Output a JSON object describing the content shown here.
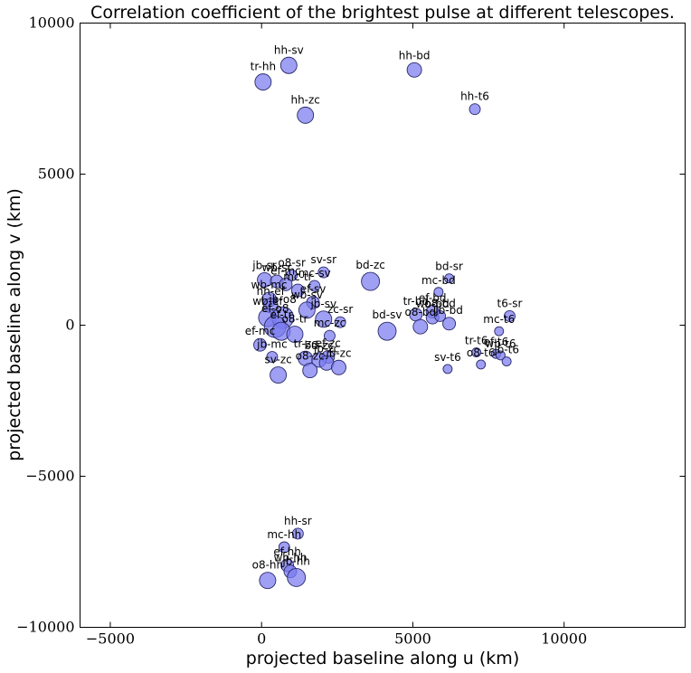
{
  "chart_data": {
    "type": "scatter",
    "title": "Correlation coefficient of the brightest pulse at different telescopes.",
    "xlabel": "projected baseline along u (km)",
    "ylabel": "projected baseline along v (km)",
    "xlim": [
      -6000,
      14000
    ],
    "ylim": [
      -10000,
      10000
    ],
    "xticks": [
      -5000,
      0,
      5000,
      10000
    ],
    "xtick_labels": [
      "−5000",
      "0",
      "5000",
      "10000"
    ],
    "yticks": [
      -10000,
      -5000,
      0,
      5000,
      10000
    ],
    "ytick_labels": [
      "−10000",
      "−5000",
      "0",
      "5000",
      "10000"
    ],
    "grid": false,
    "marker_color": "#7a7af0",
    "points": [
      {
        "label": "hh-sv",
        "u": 900,
        "v": 8600,
        "r": 9
      },
      {
        "label": "tr-hh",
        "u": 50,
        "v": 8050,
        "r": 9
      },
      {
        "label": "hh-bd",
        "u": 5050,
        "v": 8450,
        "r": 8
      },
      {
        "label": "hh-zc",
        "u": 1450,
        "v": 6950,
        "r": 9
      },
      {
        "label": "hh-t6",
        "u": 7050,
        "v": 7150,
        "r": 6
      },
      {
        "label": "jb-sr",
        "u": 100,
        "v": 1500,
        "r": 8
      },
      {
        "label": "o8-sr",
        "u": 1000,
        "v": 1650,
        "r": 6
      },
      {
        "label": "sv-sr",
        "u": 2050,
        "v": 1750,
        "r": 6
      },
      {
        "label": "wb-sr",
        "u": 500,
        "v": 1450,
        "r": 7
      },
      {
        "label": "ef-mc",
        "u": 800,
        "v": 1350,
        "r": 7
      },
      {
        "label": "mc-sv",
        "u": 1750,
        "v": 1300,
        "r": 6
      },
      {
        "label": "wb-mc",
        "u": 250,
        "v": 850,
        "r": 8
      },
      {
        "label": "mc-tr",
        "u": 1200,
        "v": 1150,
        "r": 7
      },
      {
        "label": "ef-sv",
        "u": 1700,
        "v": 750,
        "r": 7
      },
      {
        "label": "hh-ef",
        "u": 300,
        "v": 650,
        "r": 8
      },
      {
        "label": "wb-sv",
        "u": 1500,
        "v": 500,
        "r": 9
      },
      {
        "label": "jb-sv",
        "u": 2050,
        "v": 200,
        "r": 9
      },
      {
        "label": "wb-ef",
        "u": 200,
        "v": 250,
        "r": 10
      },
      {
        "label": "jb-o8",
        "u": 700,
        "v": 250,
        "r": 12
      },
      {
        "label": "ef-o8",
        "u": 450,
        "v": -50,
        "r": 12
      },
      {
        "label": "ef-tr",
        "u": 650,
        "v": -200,
        "r": 10
      },
      {
        "label": "o8-tr",
        "u": 1100,
        "v": -300,
        "r": 9
      },
      {
        "label": "ef-mc",
        "u": -50,
        "v": -650,
        "r": 7
      },
      {
        "label": "jb-mc",
        "u": 350,
        "v": -1050,
        "r": 6
      },
      {
        "label": "zc-sr",
        "u": 2600,
        "v": 100,
        "r": 6
      },
      {
        "label": "mc-zc",
        "u": 2250,
        "v": -350,
        "r": 6
      },
      {
        "label": "bd-zc",
        "u": 3600,
        "v": 1450,
        "r": 10
      },
      {
        "label": "bd-sv",
        "u": 4150,
        "v": -200,
        "r": 10
      },
      {
        "label": "tr-zc",
        "u": 1450,
        "v": -1100,
        "r": 8
      },
      {
        "label": "ef-zc",
        "u": 2200,
        "v": -1050,
        "r": 7
      },
      {
        "label": "bd-zc",
        "u": 1900,
        "v": -1150,
        "r": 8
      },
      {
        "label": "jb-zc",
        "u": 2150,
        "v": -1250,
        "r": 8
      },
      {
        "label": "o8-zc",
        "u": 1600,
        "v": -1500,
        "r": 8
      },
      {
        "label": "jb-zc",
        "u": 2550,
        "v": -1400,
        "r": 8
      },
      {
        "label": "sv-zc",
        "u": 550,
        "v": -1650,
        "r": 9
      },
      {
        "label": "bd-sr",
        "u": 6200,
        "v": 1550,
        "r": 5
      },
      {
        "label": "mc-bd",
        "u": 5850,
        "v": 1100,
        "r": 5
      },
      {
        "label": "tr-bd",
        "u": 5100,
        "v": 350,
        "r": 7
      },
      {
        "label": "ef-bd",
        "u": 5650,
        "v": 450,
        "r": 7
      },
      {
        "label": "wb-bd",
        "u": 5650,
        "v": 250,
        "r": 7
      },
      {
        "label": "o8-bd",
        "u": 5900,
        "v": 300,
        "r": 6
      },
      {
        "label": "jb-bd",
        "u": 6200,
        "v": 50,
        "r": 7
      },
      {
        "label": "o8-bd",
        "u": 5250,
        "v": -50,
        "r": 8
      },
      {
        "label": "sv-t6",
        "u": 6150,
        "v": -1450,
        "r": 5
      },
      {
        "label": "t6-sr",
        "u": 8200,
        "v": 300,
        "r": 6
      },
      {
        "label": "mc-t6",
        "u": 7850,
        "v": -200,
        "r": 5
      },
      {
        "label": "tr-t6",
        "u": 7100,
        "v": -900,
        "r": 5
      },
      {
        "label": "ef-t6",
        "u": 7750,
        "v": -950,
        "r": 5
      },
      {
        "label": "wb-t6",
        "u": 7900,
        "v": -1000,
        "r": 5
      },
      {
        "label": "jb-t6",
        "u": 8100,
        "v": -1200,
        "r": 5
      },
      {
        "label": "o8-t6",
        "u": 7250,
        "v": -1300,
        "r": 5
      },
      {
        "label": "hh-sr",
        "u": 1200,
        "v": -6900,
        "r": 6
      },
      {
        "label": "mc-hh",
        "u": 750,
        "v": -7350,
        "r": 6
      },
      {
        "label": "ef-hh",
        "u": 850,
        "v": -7950,
        "r": 7
      },
      {
        "label": "wb-hh",
        "u": 950,
        "v": -8150,
        "r": 7
      },
      {
        "label": "jb-hh",
        "u": 1150,
        "v": -8350,
        "r": 10
      },
      {
        "label": "o8-hh",
        "u": 200,
        "v": -8450,
        "r": 9
      }
    ]
  }
}
